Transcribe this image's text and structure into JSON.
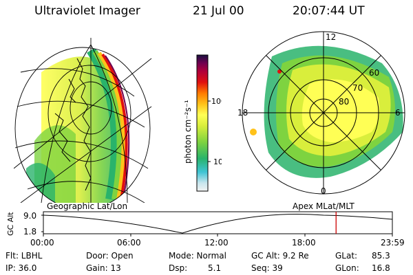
{
  "header": {
    "instrument": "Ultraviolet Imager",
    "date": "21 Jul 00",
    "time": "20:07:44 UT"
  },
  "colorbar": {
    "unit_label": "photon cm⁻²s⁻¹",
    "tick_labels": [
      "100",
      "10"
    ],
    "colors": [
      "#f2f2f2",
      "#c8e6ee",
      "#3fc4d4",
      "#29b36b",
      "#7ed340",
      "#d9ee3c",
      "#ffff55",
      "#ffc21a",
      "#ff7a00",
      "#e01010",
      "#b0003a",
      "#700050",
      "#1a1040"
    ]
  },
  "polar_plot": {
    "mlt_labels": [
      "12",
      "18",
      "6",
      "0"
    ],
    "lat_labels": [
      "60",
      "70",
      "80"
    ]
  },
  "orbit": {
    "left_title": "Geographic Lat/Lon",
    "right_title": "Apex MLat/MLT",
    "axis_label": "GC Alt",
    "y_ticks": [
      "9.0",
      "1.8"
    ],
    "x_ticks": [
      "00:00",
      "06:00",
      "12:00",
      "18:00",
      "23:59"
    ],
    "current_time_hours": 20.13
  },
  "status": {
    "flt": "Flt: LBHL",
    "ip": "IP: 36.0",
    "door": "Door: Open",
    "gain": "Gain: 13",
    "mode": "Mode: Normal",
    "dsp_label": "Dsp:",
    "dsp_value": "5.1",
    "gc_alt": "GC Alt: 9.2 Re",
    "seq": "Seq: 39",
    "glat_label": "GLat:",
    "glat_value": "85.3",
    "glon_label": "GLon:",
    "glon_value": "16.8"
  }
}
